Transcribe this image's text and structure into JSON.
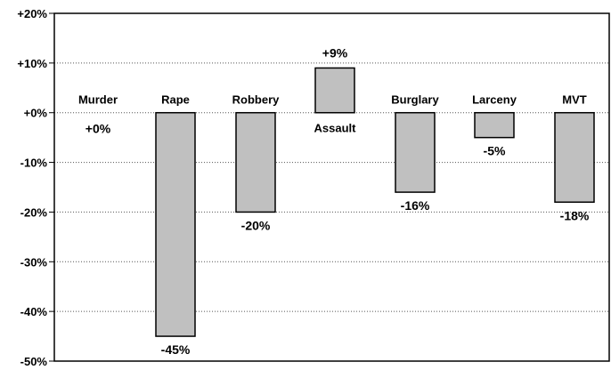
{
  "chart_data": {
    "type": "bar",
    "title": "",
    "xlabel": "",
    "ylabel": "",
    "ylim": [
      -50,
      20
    ],
    "yticks": [
      20,
      10,
      0,
      -10,
      -20,
      -30,
      -40,
      -50
    ],
    "ytick_labels": [
      "+20%",
      "+10%",
      "+0%",
      "-10%",
      "-20%",
      "-30%",
      "-40%",
      "-50%"
    ],
    "grid": "horizontal dotted",
    "categories": [
      "Murder",
      "Rape",
      "Robbery",
      "Assault",
      "Burglary",
      "Larceny",
      "MVT"
    ],
    "values": [
      0,
      -45,
      -20,
      9,
      -16,
      -5,
      -18
    ],
    "value_labels": [
      "+0%",
      "-45%",
      "-20%",
      "+9%",
      "-16%",
      "-5%",
      "-18%"
    ],
    "bar_color": "#c0c0c0",
    "bar_edge_color": "#000000"
  }
}
